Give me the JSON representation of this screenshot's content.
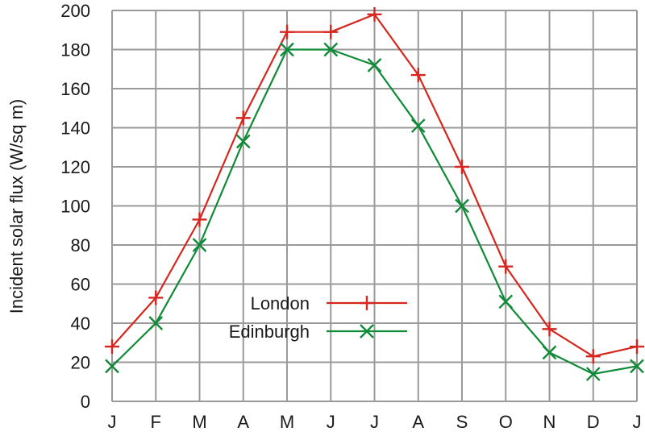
{
  "chart_data": {
    "type": "line",
    "title": "",
    "xlabel": "",
    "ylabel": "Incident solar flux (W/sq m)",
    "categories": [
      "J",
      "F",
      "M",
      "A",
      "M",
      "J",
      "J",
      "A",
      "S",
      "O",
      "N",
      "D",
      "J"
    ],
    "ylim": [
      0,
      200
    ],
    "yticks": [
      0,
      20,
      40,
      60,
      80,
      100,
      120,
      140,
      160,
      180,
      200
    ],
    "grid": true,
    "legend": "center-bottom",
    "series": [
      {
        "name": "London",
        "color": "#d7261e",
        "marker": "plus",
        "values": [
          28,
          53,
          93,
          145,
          189,
          189,
          198,
          167,
          120,
          69,
          37,
          23,
          28
        ]
      },
      {
        "name": "Edinburgh",
        "color": "#0f8a36",
        "marker": "cross",
        "values": [
          18,
          40,
          80,
          133,
          180,
          180,
          172,
          141,
          100,
          51,
          25,
          14,
          18
        ]
      }
    ]
  }
}
